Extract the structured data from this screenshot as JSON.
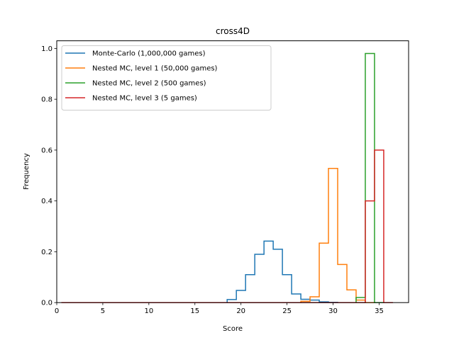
{
  "chart_data": {
    "type": "histogram-step",
    "title": "cross4D",
    "xlabel": "Score",
    "ylabel": "Frequency",
    "xlim": [
      0,
      38.2
    ],
    "ylim": [
      0,
      1.03
    ],
    "xticks": [
      0,
      5,
      10,
      15,
      20,
      25,
      30,
      35
    ],
    "yticks": [
      0.0,
      0.2,
      0.4,
      0.6,
      0.8,
      1.0
    ],
    "xtick_labels": [
      "0",
      "5",
      "10",
      "15",
      "20",
      "25",
      "30",
      "35"
    ],
    "ytick_labels": [
      "0.0",
      "0.2",
      "0.4",
      "0.6",
      "0.8",
      "1.0"
    ],
    "grid": false,
    "legend_position": "top-left",
    "series": [
      {
        "name": "Monte-Carlo (1,000,000 games)",
        "color": "#1f77b4",
        "bin_edges": [
          0.5,
          18.5,
          19.5,
          20.5,
          21.5,
          22.5,
          23.5,
          24.5,
          25.5,
          26.5,
          27.5,
          28.5,
          29.5,
          30.5,
          31.5
        ],
        "values": [
          0,
          0.012,
          0.048,
          0.11,
          0.19,
          0.242,
          0.21,
          0.11,
          0.034,
          0.013,
          0.01,
          0.003,
          0.001,
          0
        ]
      },
      {
        "name": "Nested MC, level 1 (50,000 games)",
        "color": "#ff7f0e",
        "bin_edges": [
          0.5,
          26.5,
          27.5,
          28.5,
          29.5,
          30.5,
          31.5,
          32.5,
          33.5,
          34.5
        ],
        "values": [
          0,
          0.005,
          0.023,
          0.234,
          0.528,
          0.15,
          0.05,
          0.01,
          0
        ]
      },
      {
        "name": "Nested MC, level 2 (500 games)",
        "color": "#2ca02c",
        "bin_edges": [
          0.5,
          32.5,
          33.5,
          34.5,
          35.5
        ],
        "values": [
          0,
          0.02,
          0.98,
          0
        ]
      },
      {
        "name": "Nested MC, level 3 (5 games)",
        "color": "#d62728",
        "bin_edges": [
          0.5,
          33.5,
          34.5,
          35.5,
          36.5
        ],
        "values": [
          0,
          0.4,
          0.6,
          0
        ]
      }
    ]
  }
}
